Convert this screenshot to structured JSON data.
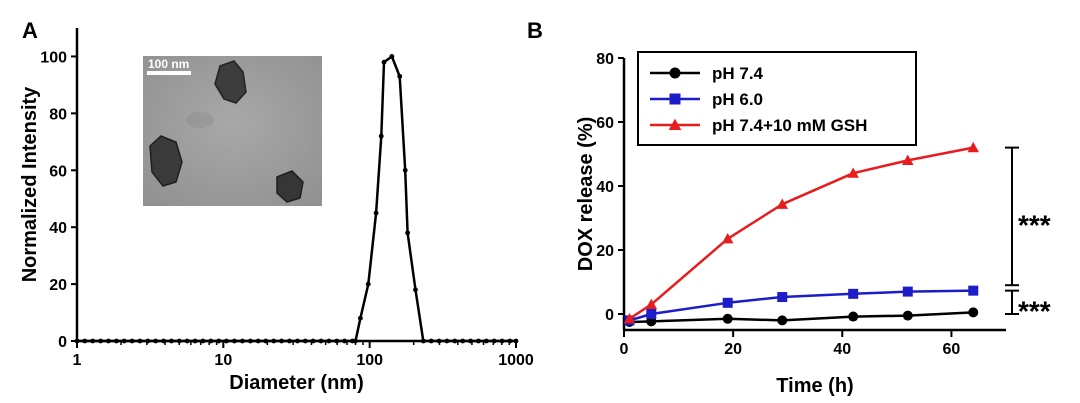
{
  "chart_data": [
    {
      "panel": "A",
      "type": "line",
      "xlabel": "Diameter (nm)",
      "ylabel": "Normalized Intensity",
      "xscale": "log",
      "xlim": [
        1,
        1000
      ],
      "ylim": [
        0,
        110
      ],
      "xticks": [
        "1",
        "10",
        "100",
        "1000"
      ],
      "yticks": [
        "0",
        "20",
        "40",
        "60",
        "80",
        "100"
      ],
      "grid": false,
      "marker": "circle",
      "color": "#000000",
      "series": [
        {
          "x": [
            1.0,
            1.13,
            1.28,
            1.45,
            1.64,
            1.86,
            2.1,
            2.38,
            2.69,
            3.05,
            3.45,
            3.91,
            4.42,
            5.0,
            5.66,
            6.41,
            7.26,
            8.21,
            9.3,
            10.5,
            11.9,
            13.5,
            15.3,
            17.3,
            19.5,
            22.1,
            25.0,
            28.3,
            32.1,
            36.3,
            41.1,
            46.5,
            52.6,
            59.6,
            67.4,
            76.3,
            80.0,
            86.4,
            97.8,
            110.7,
            120.0,
            125.3,
            141.8,
            160.5,
            175.0,
            181.7,
            205.6,
            232.7,
            263.4,
            298.1,
            337.4,
            381.9,
            432.3,
            489.3,
            553.8,
            626.8,
            709.4,
            803.0,
            908.8,
            1000.0
          ],
          "y": [
            0,
            0,
            0,
            0,
            0,
            0,
            0,
            0,
            0,
            0,
            0,
            0,
            0,
            0,
            0,
            0,
            0,
            0,
            0,
            0,
            0,
            0,
            0,
            0,
            0,
            0,
            0,
            0,
            0,
            0,
            0,
            0,
            0,
            0,
            0,
            0,
            0,
            8,
            20,
            45,
            72,
            98,
            100,
            93,
            60,
            38,
            18,
            0,
            0,
            0,
            0,
            0,
            0,
            0,
            0,
            0,
            0,
            0,
            0,
            0
          ]
        }
      ],
      "inset": {
        "scale_bar_label": "100 nm"
      }
    },
    {
      "panel": "B",
      "type": "line",
      "xlabel": "Time (h)",
      "ylabel": "DOX release (%)",
      "xlim": [
        0,
        70
      ],
      "ylim": [
        -5,
        80
      ],
      "xticks": [
        "0",
        "20",
        "40",
        "60"
      ],
      "yticks": [
        "0",
        "20",
        "40",
        "60",
        "80"
      ],
      "grid": false,
      "legend_position": "top-left",
      "series": [
        {
          "name": "pH 7.4",
          "color": "#000000",
          "marker": "circle",
          "x": [
            1,
            5,
            19,
            29,
            42,
            52,
            64
          ],
          "y": [
            -2.5,
            -2.3,
            -1.5,
            -2.0,
            -0.8,
            -0.5,
            0.5
          ]
        },
        {
          "name": "pH 6.0",
          "color": "#1c1cc8",
          "marker": "square",
          "x": [
            1,
            5,
            19,
            29,
            42,
            52,
            64
          ],
          "y": [
            -2.0,
            0.0,
            3.5,
            5.3,
            6.3,
            7.0,
            7.3
          ]
        },
        {
          "name": "pH 7.4+10 mM GSH",
          "color": "#e81c1c",
          "marker": "triangle",
          "x": [
            1,
            5,
            19,
            29,
            42,
            52,
            64
          ],
          "y": [
            -1.5,
            3.0,
            23.5,
            34.3,
            44.0,
            48.0,
            52.0
          ]
        }
      ],
      "annotations": [
        {
          "text": "***",
          "between_y": [
            52.0,
            9.0
          ]
        },
        {
          "text": "***",
          "between_y": [
            7.3,
            0.0
          ]
        }
      ]
    }
  ],
  "labels": {
    "panel_a": "A",
    "panel_b": "B"
  }
}
